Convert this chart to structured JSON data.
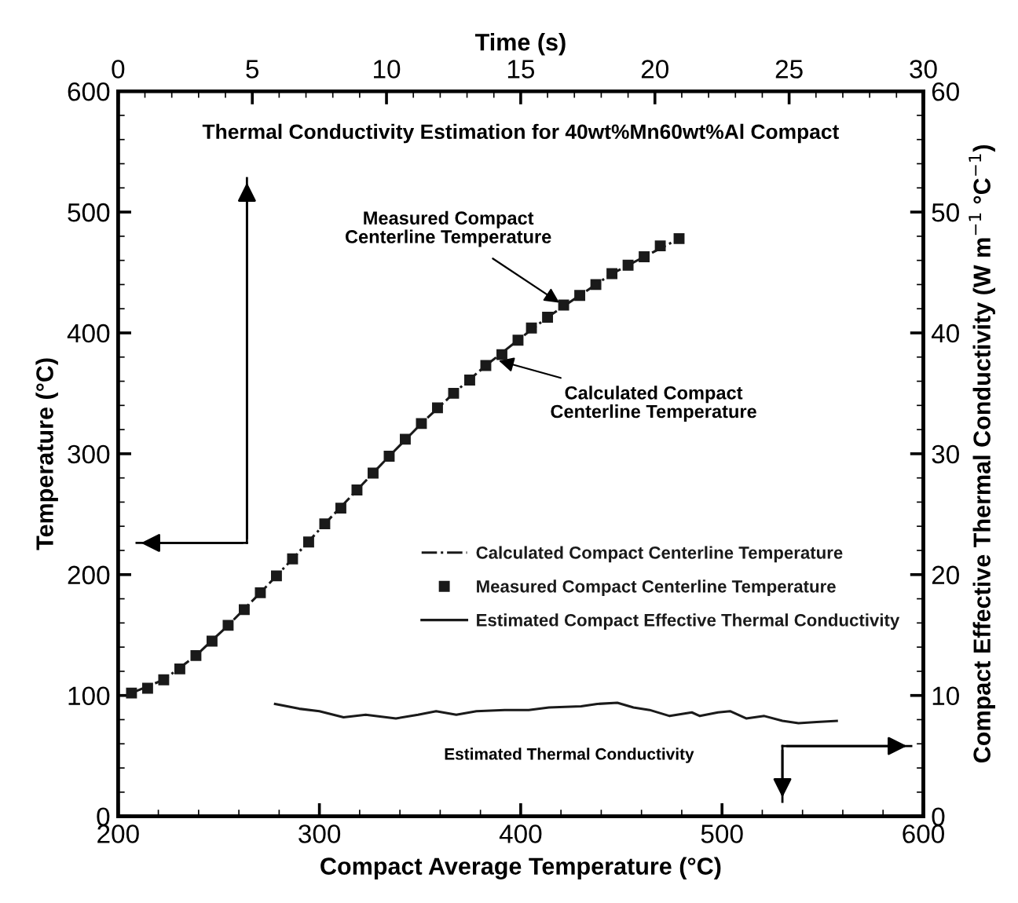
{
  "chart_data": {
    "type": "line",
    "title": "Thermal Conductivity Estimation for 40wt%Mn60wt%Al Compact",
    "xlabel": "Compact Average Temperature (°C)",
    "ylabel": "Temperature (°C)",
    "y2label": "Compact Effective Thermal Conductivity (W m$^{−1}$ °C$^{−1}$)",
    "x2label": "Time (s)",
    "xlim": [
      200,
      600
    ],
    "xticks": [
      200,
      300,
      400,
      500,
      600
    ],
    "ylim": [
      0,
      600
    ],
    "yticks": [
      0,
      100,
      200,
      300,
      400,
      500,
      600
    ],
    "x2lim": [
      0,
      30
    ],
    "x2ticks": [
      0,
      5,
      10,
      15,
      20,
      25,
      30
    ],
    "y2lim": [
      0,
      60
    ],
    "y2ticks": [
      0,
      10,
      20,
      30,
      40,
      50,
      60
    ],
    "series": [
      {
        "name": "Calculated Compact Centerline Temperature",
        "line_style": "dashdot",
        "color": "#1a1a1a",
        "axis": "x2",
        "x": [
          0.5,
          1.7,
          2.9,
          4.1,
          5.3,
          6.5,
          7.7,
          8.9,
          10.1,
          11.3,
          12.5,
          13.7,
          14.9,
          16.0,
          17.2,
          18.4,
          19.6,
          20.9
        ],
        "values": [
          102,
          113,
          133,
          158,
          185,
          213,
          242,
          270,
          298,
          325,
          350,
          373,
          394,
          413,
          431,
          449,
          463,
          478
        ]
      },
      {
        "name": "Measured Compact Centerline Temperature",
        "type": "scatter",
        "marker": "square",
        "color": "#1a1a1a",
        "axis": "x2",
        "x": [
          0.5,
          1.1,
          1.7,
          2.3,
          2.9,
          3.5,
          4.1,
          4.7,
          5.3,
          5.9,
          6.5,
          7.1,
          7.7,
          8.3,
          8.9,
          9.5,
          10.1,
          10.7,
          11.3,
          11.9,
          12.5,
          13.1,
          13.7,
          14.3,
          14.9,
          15.4,
          16.0,
          16.6,
          17.2,
          17.8,
          18.4,
          19.0,
          19.6,
          20.2,
          20.9
        ],
        "values": [
          102,
          106,
          113,
          122,
          133,
          145,
          158,
          171,
          185,
          199,
          213,
          227,
          242,
          255,
          270,
          284,
          298,
          312,
          325,
          338,
          350,
          361,
          373,
          382,
          394,
          404,
          413,
          423,
          431,
          440,
          449,
          456,
          463,
          472,
          478
        ]
      },
      {
        "name": "Estimated Compact Effective Thermal Conductivity",
        "line_style": "solid",
        "color": "#1a1a1a",
        "axis": "y2",
        "x": [
          278,
          290,
          300,
          312,
          323,
          338,
          349,
          358,
          368,
          378,
          392,
          404,
          414,
          430,
          438,
          448,
          456,
          464,
          474,
          485,
          489,
          498,
          504,
          512,
          521,
          530,
          538,
          547,
          557
        ],
        "values": [
          9.3,
          8.9,
          8.7,
          8.2,
          8.4,
          8.1,
          8.4,
          8.7,
          8.4,
          8.7,
          8.8,
          8.8,
          9.0,
          9.1,
          9.3,
          9.4,
          9.0,
          8.8,
          8.3,
          8.6,
          8.3,
          8.6,
          8.7,
          8.1,
          8.3,
          7.9,
          7.7,
          7.8,
          7.9
        ]
      }
    ],
    "annotations": [
      {
        "text": "Measured Compact\nCenterline Temperature",
        "x": 421,
        "y": 423
      },
      {
        "text": "Calculated Compact\nCenterline Temperature",
        "x": 387,
        "y": 378
      },
      "Estimated Thermal Conductivity"
    ],
    "legend": "right",
    "grid": false
  }
}
